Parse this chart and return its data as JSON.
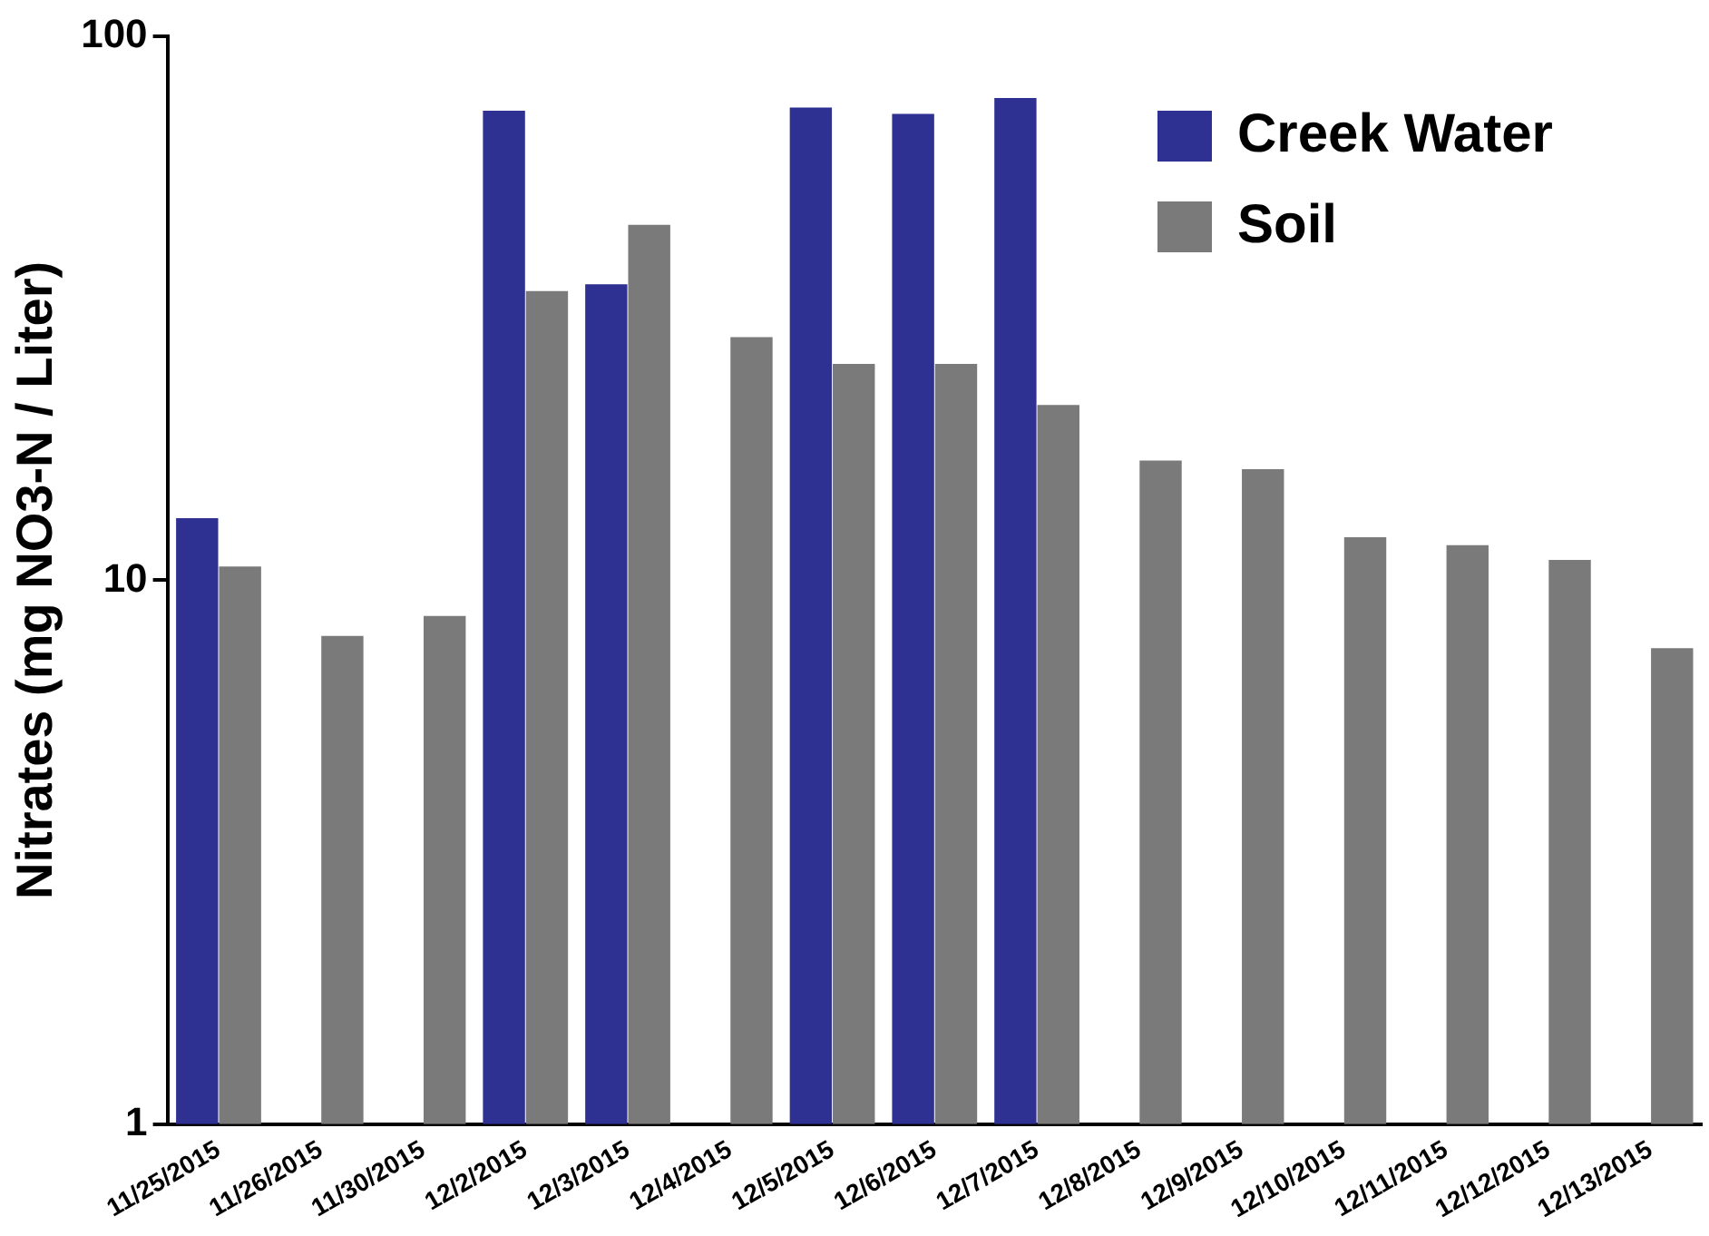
{
  "chart_data": {
    "type": "bar",
    "ylabel": "Nitrates (mg NO3-N / Liter)",
    "log": true,
    "ylim": [
      1,
      100
    ],
    "yticks": [
      1,
      10,
      100
    ],
    "grid": false,
    "legend": "top right",
    "categories": [
      "11/25/2015",
      "11/26/2015",
      "11/30/2015",
      "12/2/2015",
      "12/3/2015",
      "12/4/2015",
      "12/5/2015",
      "12/6/2015",
      "12/7/2015",
      "12/8/2015",
      "12/9/2015",
      "12/10/2015",
      "12/11/2015",
      "12/12/2015",
      "12/13/2015"
    ],
    "series": [
      {
        "name": "Creek Water",
        "color": "#2e3192",
        "values": [
          13,
          null,
          null,
          73,
          35,
          null,
          74,
          72,
          77,
          null,
          null,
          null,
          null,
          null,
          null
        ]
      },
      {
        "name": "Soil",
        "color": "#7a7a7a",
        "values": [
          10.6,
          7.9,
          8.6,
          34,
          45,
          28,
          25,
          25,
          21,
          16.6,
          16,
          12,
          11.6,
          10.9,
          7.5
        ]
      }
    ]
  }
}
